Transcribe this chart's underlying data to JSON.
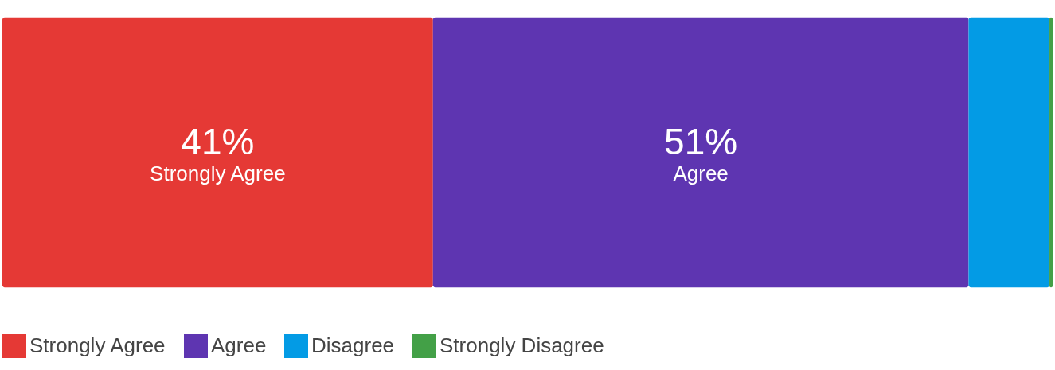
{
  "chart_data": {
    "type": "bar",
    "orientation": "horizontal",
    "stacked": true,
    "categories": [
      null
    ],
    "xlim": [
      0,
      100
    ],
    "tick_labels": false,
    "legend": "bottom",
    "series": [
      {
        "name": "Strongly Agree",
        "color": "#e53935",
        "values": [
          41
        ],
        "value_labels": [
          "41%"
        ]
      },
      {
        "name": "Agree",
        "color": "#5e35b1",
        "values": [
          51
        ],
        "value_labels": [
          "51%"
        ]
      },
      {
        "name": "Disagree",
        "color": "#039be5",
        "values": [
          7.7
        ],
        "value_labels": [
          null
        ]
      },
      {
        "name": "Strongly Disagree",
        "color": "#43a047",
        "values": [
          0.3
        ],
        "value_labels": [
          null
        ]
      }
    ]
  }
}
